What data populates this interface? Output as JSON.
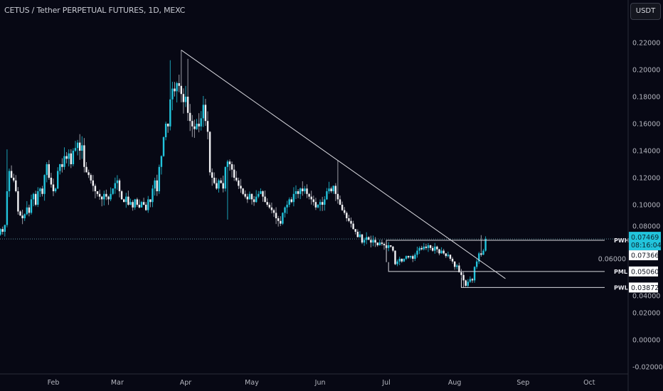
{
  "header": {
    "title": "CETUS / Tether PERPETUAL FUTURES, 1D, MEXC",
    "currency_button": "USDT"
  },
  "colors": {
    "background": "#070814",
    "up": "#22c4dc",
    "down": "#f2f2f5",
    "current_price": "#22c4dc",
    "lines": "#d8d8de"
  },
  "chart_data": {
    "type": "candlestick",
    "title": "CETUS / Tether PERPETUAL FUTURES, 1D, MEXC",
    "first_candle": "Jan 7",
    "interval": "1D",
    "closes": [
      0.078,
      0.082,
      0.08,
      0.085,
      0.11,
      0.125,
      0.12,
      0.118,
      0.11,
      0.095,
      0.092,
      0.09,
      0.093,
      0.098,
      0.094,
      0.104,
      0.108,
      0.1,
      0.11,
      0.112,
      0.108,
      0.122,
      0.13,
      0.12,
      0.115,
      0.11,
      0.112,
      0.125,
      0.13,
      0.128,
      0.136,
      0.134,
      0.138,
      0.13,
      0.14,
      0.142,
      0.146,
      0.14,
      0.144,
      0.128,
      0.124,
      0.122,
      0.118,
      0.114,
      0.11,
      0.108,
      0.106,
      0.104,
      0.108,
      0.106,
      0.104,
      0.108,
      0.112,
      0.116,
      0.118,
      0.11,
      0.104,
      0.102,
      0.106,
      0.1,
      0.102,
      0.098,
      0.104,
      0.1,
      0.098,
      0.102,
      0.1,
      0.096,
      0.104,
      0.102,
      0.112,
      0.118,
      0.11,
      0.128,
      0.136,
      0.15,
      0.16,
      0.158,
      0.178,
      0.186,
      0.184,
      0.19,
      0.188,
      0.182,
      0.176,
      0.18,
      0.168,
      0.162,
      0.158,
      0.156,
      0.16,
      0.158,
      0.164,
      0.174,
      0.162,
      0.154,
      0.124,
      0.12,
      0.116,
      0.112,
      0.118,
      0.116,
      0.112,
      0.128,
      0.132,
      0.13,
      0.126,
      0.12,
      0.118,
      0.114,
      0.112,
      0.108,
      0.106,
      0.104,
      0.108,
      0.104,
      0.102,
      0.106,
      0.108,
      0.11,
      0.106,
      0.102,
      0.1,
      0.098,
      0.096,
      0.094,
      0.09,
      0.088,
      0.086,
      0.094,
      0.098,
      0.1,
      0.104,
      0.102,
      0.108,
      0.11,
      0.108,
      0.112,
      0.11,
      0.112,
      0.108,
      0.106,
      0.104,
      0.102,
      0.098,
      0.1,
      0.102,
      0.1,
      0.104,
      0.11,
      0.112,
      0.11,
      0.114,
      0.108,
      0.104,
      0.1,
      0.096,
      0.094,
      0.09,
      0.088,
      0.086,
      0.082,
      0.08,
      0.076,
      0.078,
      0.072,
      0.074,
      0.076,
      0.074,
      0.072,
      0.074,
      0.072,
      0.07,
      0.072,
      0.071,
      0.07,
      0.068,
      0.07,
      0.069,
      0.066,
      0.056,
      0.058,
      0.06,
      0.058,
      0.06,
      0.062,
      0.061,
      0.062,
      0.06,
      0.063,
      0.066,
      0.068,
      0.067,
      0.069,
      0.068,
      0.07,
      0.068,
      0.066,
      0.069,
      0.067,
      0.064,
      0.066,
      0.064,
      0.062,
      0.063,
      0.06,
      0.058,
      0.054,
      0.055,
      0.05,
      0.048,
      0.044,
      0.04,
      0.043,
      0.045,
      0.044,
      0.054,
      0.058,
      0.064,
      0.063,
      0.066,
      0.07469
    ],
    "notable_wicks": [
      {
        "date": "Jan 11",
        "high": 0.141
      },
      {
        "date": "Mar 25",
        "high": 0.207
      },
      {
        "date": "Mar 30",
        "high": 0.2145
      },
      {
        "date": "Apr 2",
        "high": 0.208
      },
      {
        "date": "Apr 20",
        "low": 0.089
      },
      {
        "date": "Jun 9",
        "high": 0.133
      },
      {
        "date": "Aug 5",
        "low": 0.0387
      },
      {
        "date": "Aug 13",
        "high": 0.0775
      }
    ],
    "x_ticks": [
      "Feb",
      "Mar",
      "Apr",
      "May",
      "Jun",
      "Jul",
      "Aug",
      "Sep",
      "Oct"
    ],
    "y_ticks": [
      "0.22000",
      "0.20000",
      "0.18000",
      "0.16000",
      "0.14000",
      "0.12000",
      "0.10000",
      "0.08000",
      "0.06000",
      "0.04000",
      "0.02000",
      "0.00000",
      "-0.02000"
    ],
    "ylim": [
      -0.026,
      0.246
    ],
    "trendline": {
      "from": {
        "date": "Mar 30",
        "price": 0.2145
      },
      "to": {
        "date": "Aug 24",
        "price": 0.0453
      }
    },
    "levels": [
      {
        "label": "PWH",
        "price": 0.07366,
        "from": "Jul 1"
      },
      {
        "label": "PML",
        "price": 0.0506,
        "from": "Jul 2"
      },
      {
        "label": "PWL",
        "price": 0.03872,
        "from": "Aug 4"
      }
    ],
    "current_price": {
      "value": "0.07469",
      "countdown": "08:16:04"
    }
  }
}
